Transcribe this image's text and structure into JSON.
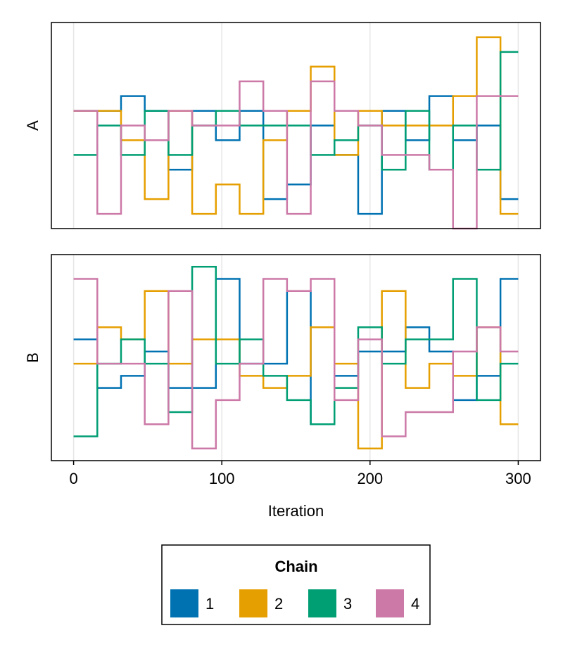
{
  "chart_data": {
    "type": "line",
    "step": "post",
    "xlabel": "Iteration",
    "xlim": [
      -15,
      315
    ],
    "xticks": [
      0,
      100,
      200,
      300
    ],
    "grid": "vertical",
    "legend": {
      "title": "Chain",
      "placement": "bottom-center",
      "entries": [
        "1",
        "2",
        "3",
        "4"
      ]
    },
    "colors": {
      "1": "#0072b2",
      "2": "#e69f00",
      "3": "#009e73",
      "4": "#cc79a7"
    },
    "x": [
      0,
      16,
      32,
      48,
      64,
      80,
      96,
      112,
      128,
      144,
      160,
      176,
      192,
      208,
      224,
      240,
      256,
      272,
      288,
      300
    ],
    "panels": [
      {
        "ylabel": "A",
        "ylim": [
          -4,
          10
        ],
        "series": [
          {
            "name": "1",
            "values": [
              4,
              4,
              5,
              4,
              0,
              4,
              2,
              4,
              -2,
              -1,
              3,
              1,
              -3,
              4,
              2,
              5,
              2,
              3,
              -2,
              -2
            ]
          },
          {
            "name": "2",
            "values": [
              4,
              4,
              2,
              -2,
              4,
              -3,
              -1,
              -3,
              2,
              4,
              7,
              1,
              4,
              3,
              3,
              3,
              5,
              9,
              -3,
              -3
            ]
          },
          {
            "name": "3",
            "values": [
              1,
              3,
              1,
              4,
              1,
              3,
              4,
              3,
              3,
              3,
              1,
              2,
              3,
              0,
              4,
              0,
              3,
              0,
              8,
              8
            ]
          },
          {
            "name": "4",
            "values": [
              4,
              -3,
              3,
              2,
              4,
              3,
              3,
              6,
              4,
              -3,
              6,
              4,
              3,
              1,
              1,
              0,
              -4,
              5,
              5,
              5
            ]
          }
        ]
      },
      {
        "ylabel": "B",
        "ylim": [
          -4,
          13
        ],
        "series": [
          {
            "name": "1",
            "values": [
              6,
              2,
              3,
              5,
              2,
              2,
              11,
              4,
              4,
              10,
              -1,
              3,
              5,
              5,
              7,
              5,
              1,
              3,
              11,
              11
            ]
          },
          {
            "name": "2",
            "values": [
              4,
              7,
              6,
              10,
              4,
              6,
              6,
              3,
              2,
              3,
              7,
              4,
              -3,
              10,
              2,
              4,
              3,
              7,
              -1,
              -1
            ]
          },
          {
            "name": "3",
            "values": [
              -2,
              4,
              6,
              4,
              0,
              12,
              4,
              6,
              3,
              1,
              -1,
              2,
              7,
              4,
              6,
              6,
              11,
              1,
              4,
              4
            ]
          },
          {
            "name": "4",
            "values": [
              11,
              4,
              4,
              -1,
              10,
              -3,
              1,
              4,
              11,
              10,
              11,
              1,
              6,
              -2,
              0,
              0,
              5,
              7,
              5,
              5
            ]
          }
        ]
      }
    ]
  }
}
